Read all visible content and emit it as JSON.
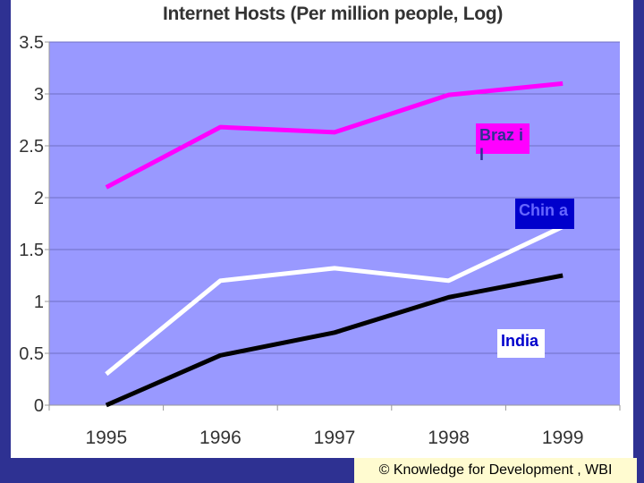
{
  "chart_data": {
    "type": "line",
    "title": "Internet Hosts (Per million people, Log)",
    "x": [
      "1995",
      "1996",
      "1997",
      "1998",
      "1999"
    ],
    "ylim": [
      0,
      3.5
    ],
    "yticks": [
      "0",
      "0.5",
      "1",
      "1.5",
      "2",
      "2.5",
      "3",
      "3.5"
    ],
    "grid": true,
    "series": [
      {
        "name": "Braz il",
        "values": [
          2.1,
          2.68,
          2.63,
          2.99,
          3.1
        ],
        "color": "#ff00ff"
      },
      {
        "name": "Chin a",
        "values": [
          0.3,
          1.2,
          1.32,
          1.2,
          1.72
        ],
        "color": "#ffffff"
      },
      {
        "name": "India",
        "values": [
          0.0,
          0.48,
          0.7,
          1.04,
          1.25
        ],
        "color": "#000000"
      }
    ],
    "plot_background": "#9999ff"
  },
  "footer": {
    "text": "© Knowledge for Development , WBI"
  }
}
